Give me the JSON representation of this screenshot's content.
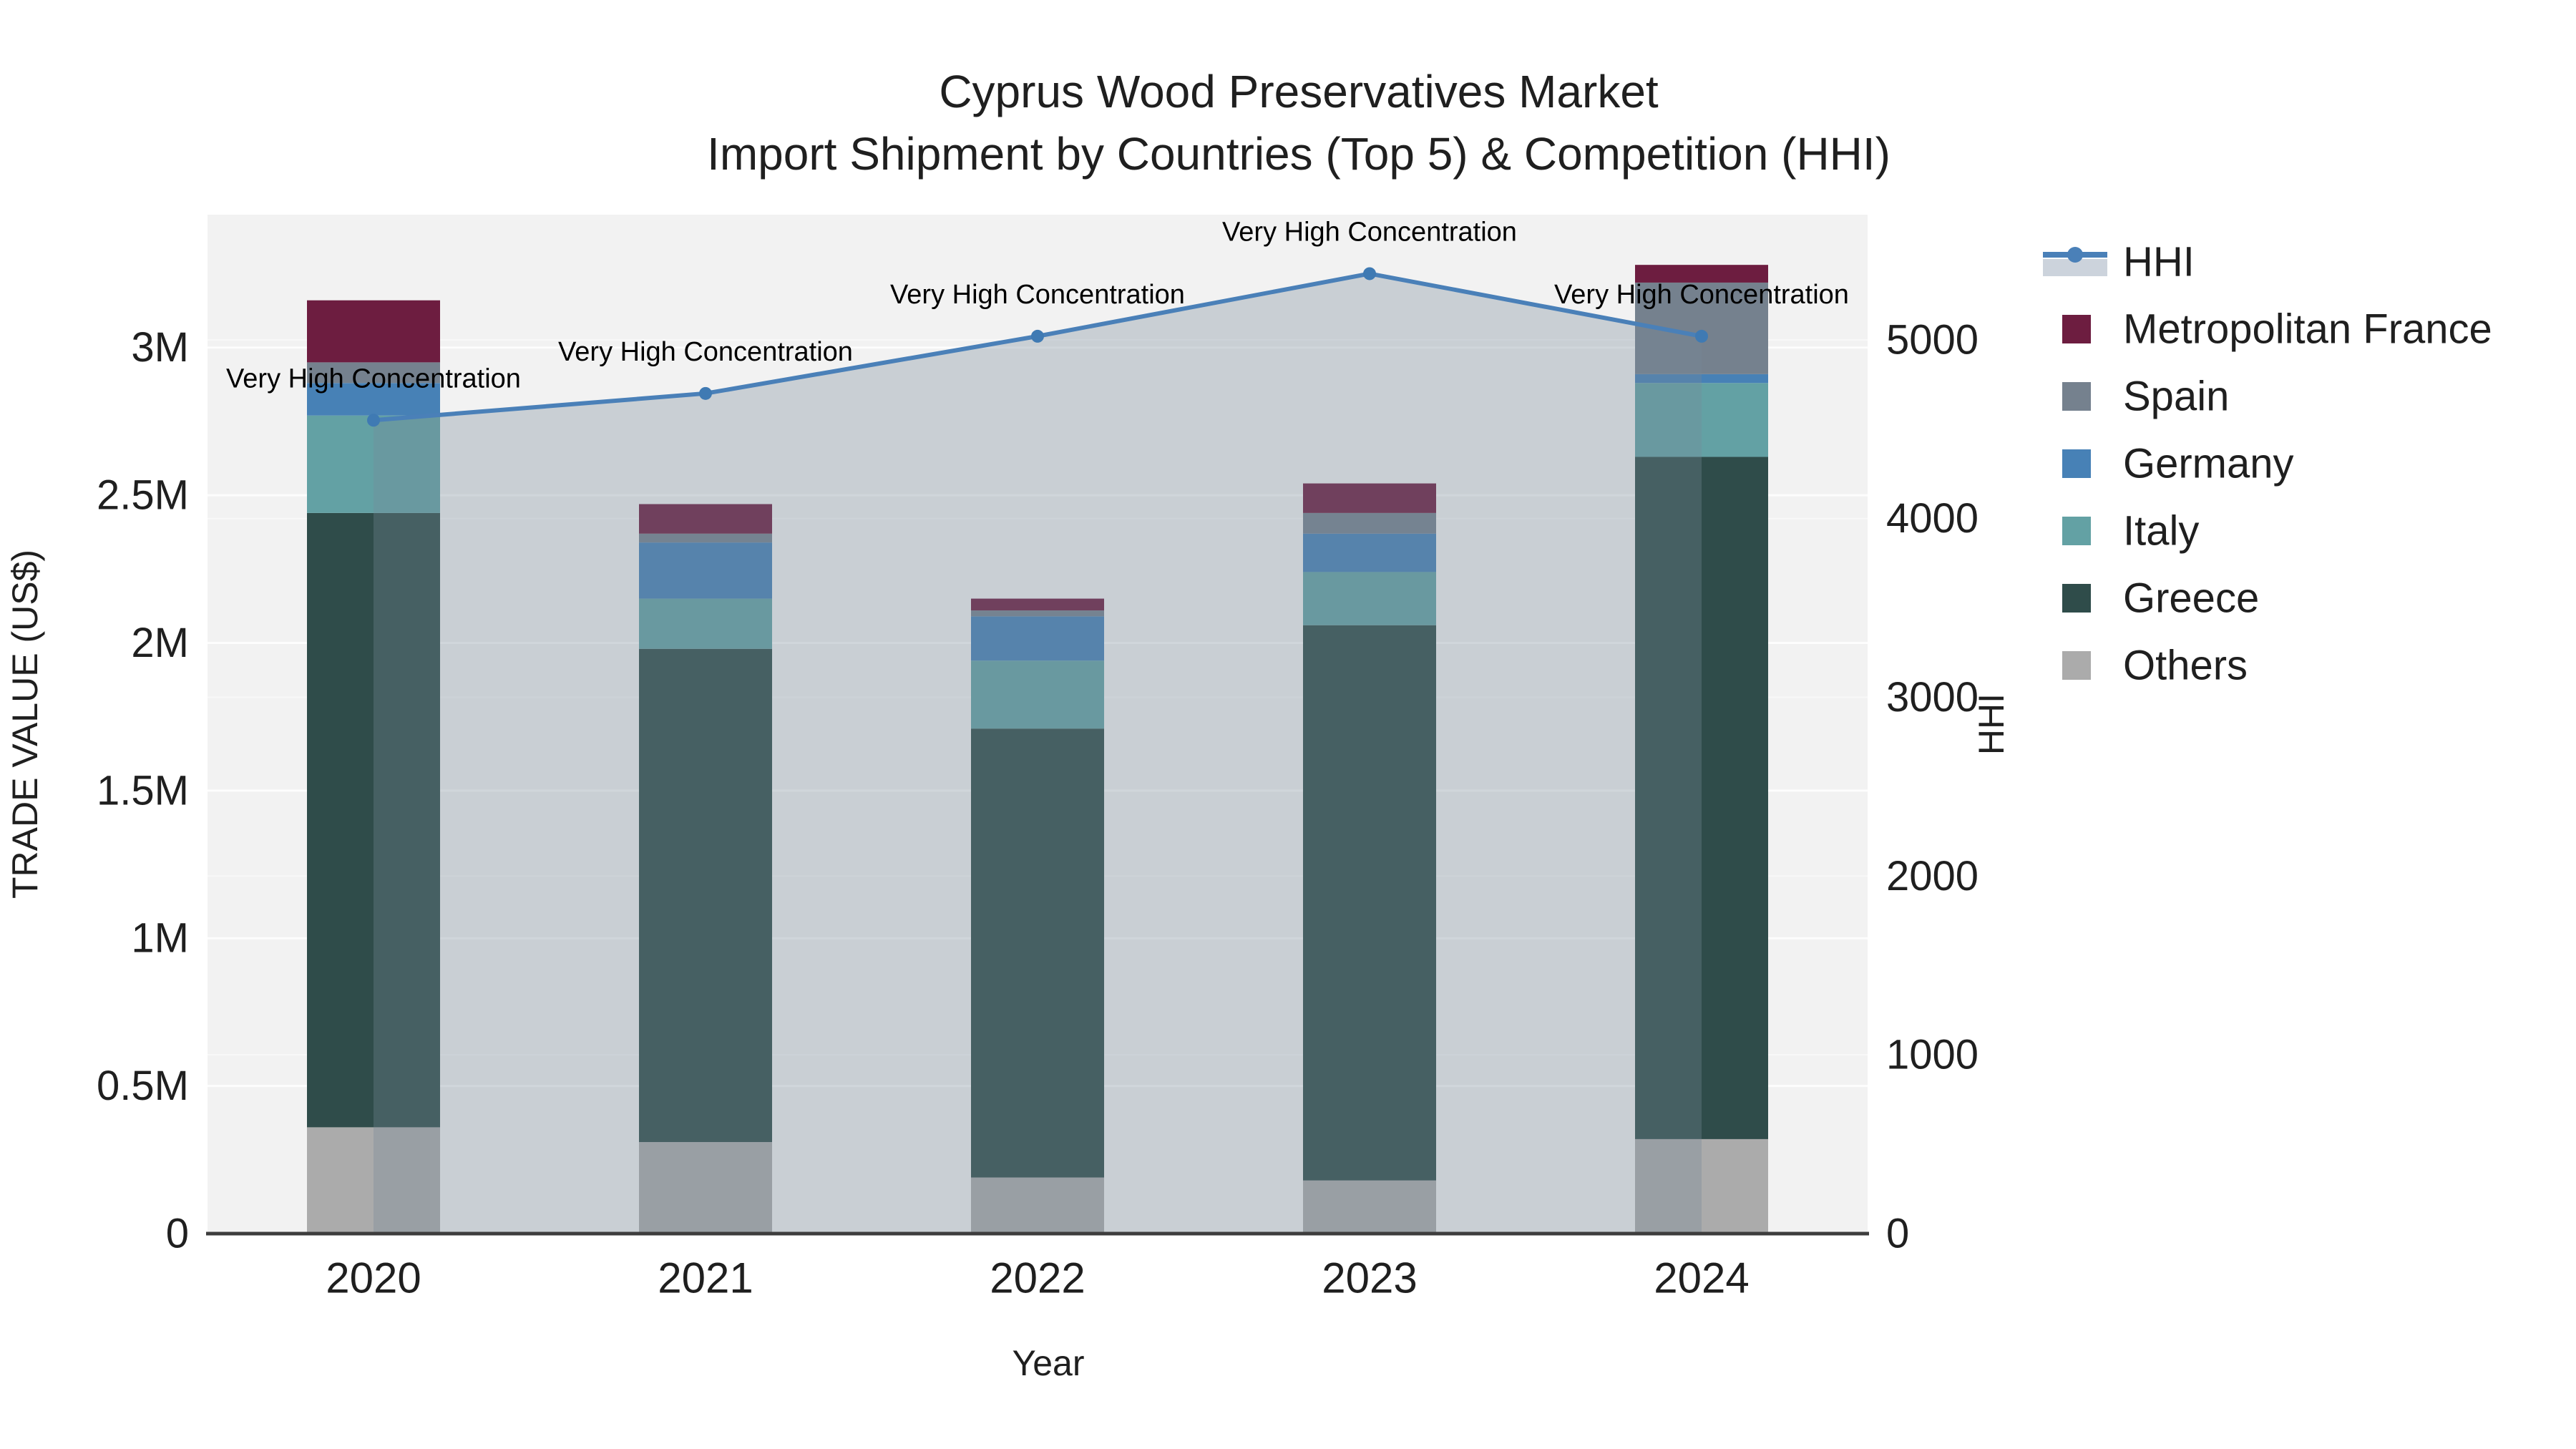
{
  "title": {
    "line1": "Cyprus Wood Preservatives Market",
    "line2": "Import Shipment by Countries (Top 5) & Competition (HHI)"
  },
  "chart_data": {
    "type": "bar",
    "subtype": "stacked-bar-with-line",
    "categories": [
      "2020",
      "2021",
      "2022",
      "2023",
      "2024"
    ],
    "series": [
      {
        "name": "Others",
        "color": "#ababab",
        "values": [
          0.36,
          0.31,
          0.19,
          0.18,
          0.32
        ]
      },
      {
        "name": "Greece",
        "color": "#2f4c4a",
        "values": [
          2.08,
          1.67,
          1.52,
          1.88,
          2.31
        ]
      },
      {
        "name": "Italy",
        "color": "#63a1a4",
        "values": [
          0.33,
          0.17,
          0.23,
          0.18,
          0.25
        ]
      },
      {
        "name": "Germany",
        "color": "#4781b6",
        "values": [
          0.11,
          0.19,
          0.15,
          0.13,
          0.03
        ]
      },
      {
        "name": "Spain",
        "color": "#75818e",
        "values": [
          0.07,
          0.03,
          0.02,
          0.07,
          0.31
        ]
      },
      {
        "name": "Metropolitan France",
        "color": "#6d1d40",
        "values": [
          0.21,
          0.1,
          0.04,
          0.1,
          0.06
        ]
      }
    ],
    "line": {
      "name": "HHI",
      "color": "#4a80b8",
      "marker_color": "#3f7ab3",
      "area_fill": "rgba(118,136,151,0.33)",
      "values": [
        4550,
        4700,
        5020,
        5370,
        5020
      ]
    },
    "annotations": [
      {
        "category": "2020",
        "text": "Very High Concentration"
      },
      {
        "category": "2021",
        "text": "Very High Concentration"
      },
      {
        "category": "2022",
        "text": "Very High Concentration"
      },
      {
        "category": "2023",
        "text": "Very High Concentration"
      },
      {
        "category": "2024",
        "text": "Very High Concentration"
      }
    ],
    "x": {
      "label": "Year"
    },
    "y1": {
      "label": "TRADE VALUE (US$)",
      "ticks": [
        "0",
        "0.5M",
        "1M",
        "1.5M",
        "2M",
        "2.5M",
        "3M"
      ],
      "tick_values": [
        0,
        0.5,
        1,
        1.5,
        2,
        2.5,
        3
      ],
      "unit": "M US$",
      "ylim": [
        0,
        3.45
      ]
    },
    "y2": {
      "label": "HHI",
      "ticks": [
        "0",
        "1000",
        "2000",
        "3000",
        "4000",
        "5000"
      ],
      "tick_values": [
        0,
        1000,
        2000,
        3000,
        4000,
        5000
      ],
      "ylim": [
        0,
        5700
      ]
    },
    "grid": true,
    "legend_position": "right"
  },
  "legend": {
    "items": [
      {
        "label": "HHI",
        "type": "line",
        "color": "#4a80b8",
        "band": "#ccd3dc"
      },
      {
        "label": "Metropolitan France",
        "type": "square",
        "color": "#6d1d40"
      },
      {
        "label": "Spain",
        "type": "square",
        "color": "#75818e"
      },
      {
        "label": "Germany",
        "type": "square",
        "color": "#4781b6"
      },
      {
        "label": "Italy",
        "type": "square",
        "color": "#63a1a4"
      },
      {
        "label": "Greece",
        "type": "square",
        "color": "#2f4c4a"
      },
      {
        "label": "Others",
        "type": "square",
        "color": "#ababab"
      }
    ]
  },
  "colors": {
    "plot_background": "#f2f2f2",
    "figure_background": "#ffffff",
    "gridline": "#ffffff",
    "axis_line": "#3d3d3d",
    "text": "#1f1f1f"
  }
}
